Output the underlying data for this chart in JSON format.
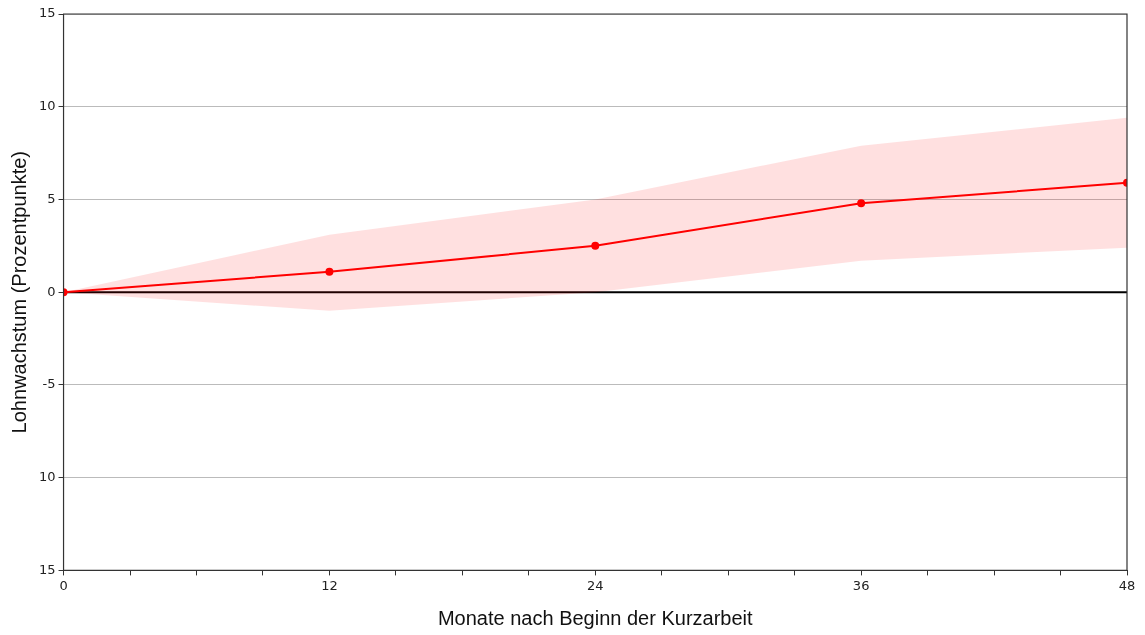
{
  "chart_data": {
    "type": "line",
    "xlabel": "Monate nach Beginn der Kurzarbeit",
    "ylabel": "Lohnwachstum (Prozentpunkte)",
    "x": [
      0,
      12,
      24,
      36,
      48
    ],
    "series": [
      {
        "color": "#ff0000",
        "values": [
          0,
          1.1,
          2.5,
          4.8,
          5.9
        ],
        "lower": [
          0,
          -1.0,
          0.0,
          1.7,
          2.4
        ],
        "upper": [
          0,
          3.1,
          5.0,
          7.9,
          9.4
        ]
      }
    ],
    "xlim": [
      0,
      48
    ],
    "xticks": [
      0,
      {
        "value": 3,
        "label": null
      },
      {
        "value": 6,
        "label": null
      },
      {
        "value": 9,
        "label": null
      },
      12,
      {
        "value": 15,
        "label": null
      },
      {
        "value": 18,
        "label": null
      },
      {
        "value": 21,
        "label": null
      },
      24,
      {
        "value": 27,
        "label": null
      },
      {
        "value": 30,
        "label": null
      },
      {
        "value": 33,
        "label": null
      },
      36,
      {
        "value": 39,
        "label": null
      },
      {
        "value": 42,
        "label": null
      },
      {
        "value": 45,
        "label": null
      },
      48
    ],
    "ylim": [
      -15,
      15
    ],
    "yticks": [
      {
        "value": -15,
        "label": "15"
      },
      {
        "value": -10,
        "label": "10"
      },
      -5,
      0,
      5,
      10,
      15
    ],
    "ref_lines": [
      {
        "axis": "y",
        "value": 0,
        "label": null,
        "color": "#000000"
      }
    ],
    "grid": "y",
    "legend": false,
    "marker": "circle",
    "line_style": "solid"
  }
}
